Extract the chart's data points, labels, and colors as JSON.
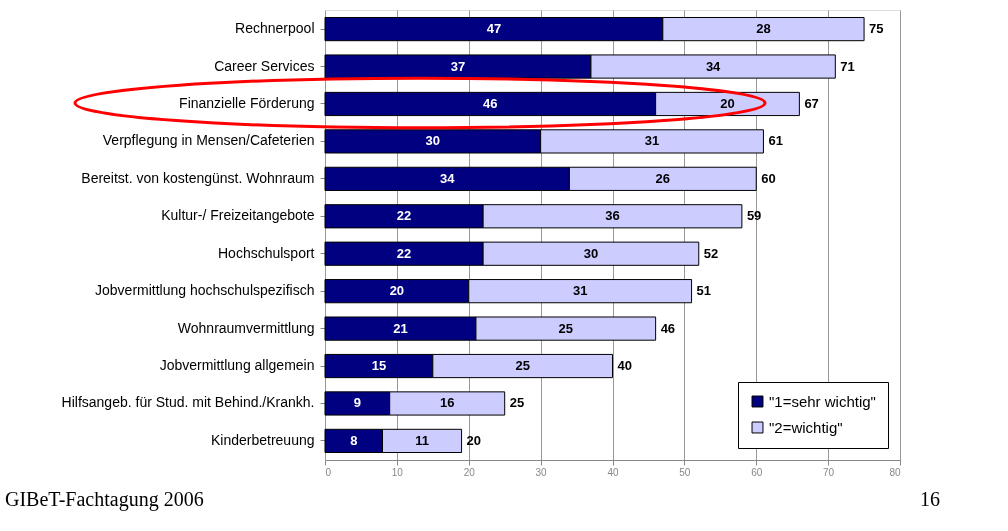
{
  "chart_data": {
    "type": "bar",
    "orientation": "horizontal",
    "stacked": true,
    "categories": [
      "Rechnerpool",
      "Career Services",
      "Finanzielle Förderung",
      "Verpflegung in Mensen/Cafeterien",
      "Bereitst. von kostengünst. Wohnraum",
      "Kultur-/ Freizeitangebote",
      "Hochschulsport",
      "Jobvermittlung hochschulspezifisch",
      "Wohnraumvermittlung",
      "Jobvermittlung allgemein",
      "Hilfsangeb. für Stud. mit Behind./Krankh.",
      "Kinderbetreuung"
    ],
    "series": [
      {
        "name": "\"1=sehr wichtig\"",
        "color": "#000080",
        "values": [
          47,
          37,
          46,
          30,
          34,
          22,
          22,
          20,
          21,
          15,
          9,
          8
        ]
      },
      {
        "name": "\"2=wichtig\"",
        "color": "#ccccff",
        "values": [
          28,
          34,
          20,
          31,
          26,
          36,
          30,
          31,
          25,
          25,
          16,
          11
        ]
      }
    ],
    "totals": [
      "75",
      "71",
      "67",
      "61",
      "60",
      "59",
      "52",
      "51",
      "46",
      "40",
      "25",
      "20"
    ],
    "data_labels": true,
    "xlim": [
      0,
      80
    ],
    "xticks": [
      0,
      10,
      20,
      30,
      40,
      50,
      60,
      70,
      80
    ],
    "grid": "x",
    "legend": "bottom right",
    "annotations": [
      "GIBeT-Fachtagung 2006",
      "16"
    ]
  }
}
